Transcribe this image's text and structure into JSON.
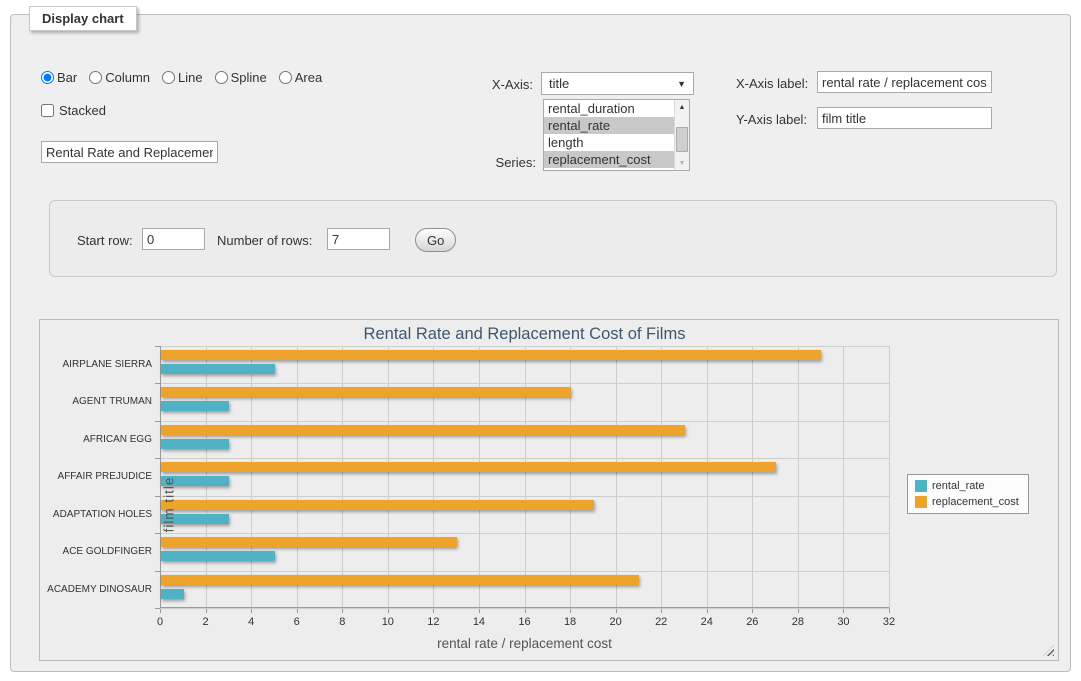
{
  "panel": {
    "legend": "Display chart",
    "chart_types": [
      {
        "label": "Bar",
        "selected": true
      },
      {
        "label": "Column",
        "selected": false
      },
      {
        "label": "Line",
        "selected": false
      },
      {
        "label": "Spline",
        "selected": false
      },
      {
        "label": "Area",
        "selected": false
      }
    ],
    "stacked_label": "Stacked",
    "chart_title_input_value": "Rental Rate and Replacement Cost of Films",
    "x_axis_label_text": "X-Axis:",
    "x_axis_select_value": "title",
    "series_label_text": "Series:",
    "series_options": [
      {
        "label": "rental_duration",
        "selected": false
      },
      {
        "label": "rental_rate",
        "selected": true
      },
      {
        "label": "length",
        "selected": false
      },
      {
        "label": "replacement_cost",
        "selected": true
      }
    ],
    "x_axis_label_field": {
      "label": "X-Axis label:",
      "value": "rental rate / replacement cost"
    },
    "y_axis_label_field": {
      "label": "Y-Axis label:",
      "value": "film title"
    }
  },
  "rows_panel": {
    "start_row_label": "Start row:",
    "start_row_value": "0",
    "num_rows_label": "Number of rows:",
    "num_rows_value": "7",
    "go_label": "Go"
  },
  "icons": {
    "dropdown_arrow": "▼",
    "scroll_up": "▲",
    "scroll_down": "▼"
  },
  "chart_data": {
    "type": "bar",
    "title": "Rental Rate and Replacement Cost of Films",
    "categories": [
      "AIRPLANE SIERRA",
      "AGENT TRUMAN",
      "AFRICAN EGG",
      "AFFAIR PREJUDICE",
      "ADAPTATION HOLES",
      "ACE GOLDFINGER",
      "ACADEMY DINOSAUR"
    ],
    "series": [
      {
        "name": "rental_rate",
        "color": "#4FB2C5",
        "values": [
          4.99,
          2.99,
          2.99,
          2.99,
          2.99,
          4.99,
          0.99
        ]
      },
      {
        "name": "replacement_cost",
        "color": "#EDA32C",
        "values": [
          28.99,
          17.99,
          22.99,
          26.99,
          18.99,
          12.99,
          20.99
        ]
      }
    ],
    "bar_order_in_group": [
      "replacement_cost",
      "rental_rate"
    ],
    "xlabel": "rental rate / replacement cost",
    "ylabel": "film title",
    "xlim": [
      0,
      32
    ],
    "x_tick_step": 2,
    "grid": true,
    "legend_position": "right"
  }
}
